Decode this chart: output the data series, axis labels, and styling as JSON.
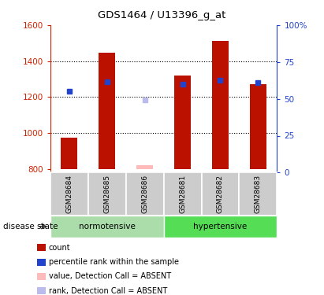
{
  "title": "GDS1464 / U13396_g_at",
  "samples": [
    "GSM28684",
    "GSM28685",
    "GSM28686",
    "GSM28681",
    "GSM28682",
    "GSM28683"
  ],
  "ylim_left": [
    780,
    1600
  ],
  "ylim_right": [
    0,
    100
  ],
  "yticks_left": [
    800,
    1000,
    1200,
    1400,
    1600
  ],
  "yticks_right": [
    0,
    25,
    50,
    75,
    100
  ],
  "ytick_right_labels": [
    "0",
    "25",
    "50",
    "75",
    "100%"
  ],
  "red_bar_values": [
    975,
    1445,
    null,
    1320,
    1510,
    1270
  ],
  "red_absent_bar_values": [
    null,
    null,
    820,
    null,
    null,
    null
  ],
  "blue_marker_values": [
    1230,
    1285,
    null,
    1270,
    1295,
    1280
  ],
  "blue_absent_marker_values": [
    null,
    null,
    1185,
    null,
    null,
    null
  ],
  "bar_bottom": 800,
  "red_color": "#bb1100",
  "blue_color": "#2244cc",
  "pink_color": "#ffbbbb",
  "lavender_color": "#bbbbee",
  "normotensive_color": "#aaddaa",
  "hypertensive_color": "#55dd55",
  "sample_box_color": "#cccccc",
  "left_tick_color": "#cc2200",
  "right_tick_color": "#2244cc",
  "legend_items": [
    {
      "label": "count",
      "color": "#bb1100"
    },
    {
      "label": "percentile rank within the sample",
      "color": "#2244cc"
    },
    {
      "label": "value, Detection Call = ABSENT",
      "color": "#ffbbbb"
    },
    {
      "label": "rank, Detection Call = ABSENT",
      "color": "#bbbbee"
    }
  ]
}
